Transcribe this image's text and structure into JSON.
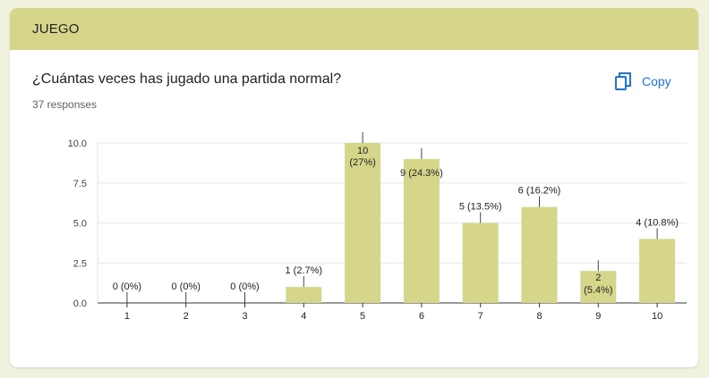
{
  "section": {
    "title": "JUEGO"
  },
  "question": {
    "text": "¿Cuántas veces has jugado una partida normal?",
    "responses": "37 responses"
  },
  "copy_button": {
    "label": "Copy",
    "icon": "copy-icon"
  },
  "colors": {
    "header": "#d5d68a",
    "bar": "#d5d68a",
    "accent": "#1a73e8",
    "background": "#f0f2de"
  },
  "chart_data": {
    "type": "bar",
    "categories": [
      "1",
      "2",
      "3",
      "4",
      "5",
      "6",
      "7",
      "8",
      "9",
      "10"
    ],
    "values": [
      0,
      0,
      0,
      1,
      10,
      9,
      5,
      6,
      2,
      4
    ],
    "data_labels": [
      "0 (0%)",
      "0 (0%)",
      "0 (0%)",
      "1 (2.7%)",
      "10 (27%)",
      "9 (24.3%)",
      "5 (13.5%)",
      "6 (16.2%)",
      "2 (5.4%)",
      "4 (10.8%)"
    ],
    "y_ticks": [
      "0.0",
      "2.5",
      "5.0",
      "7.5",
      "10.0"
    ],
    "ylim": [
      0,
      10
    ],
    "grid": true
  }
}
